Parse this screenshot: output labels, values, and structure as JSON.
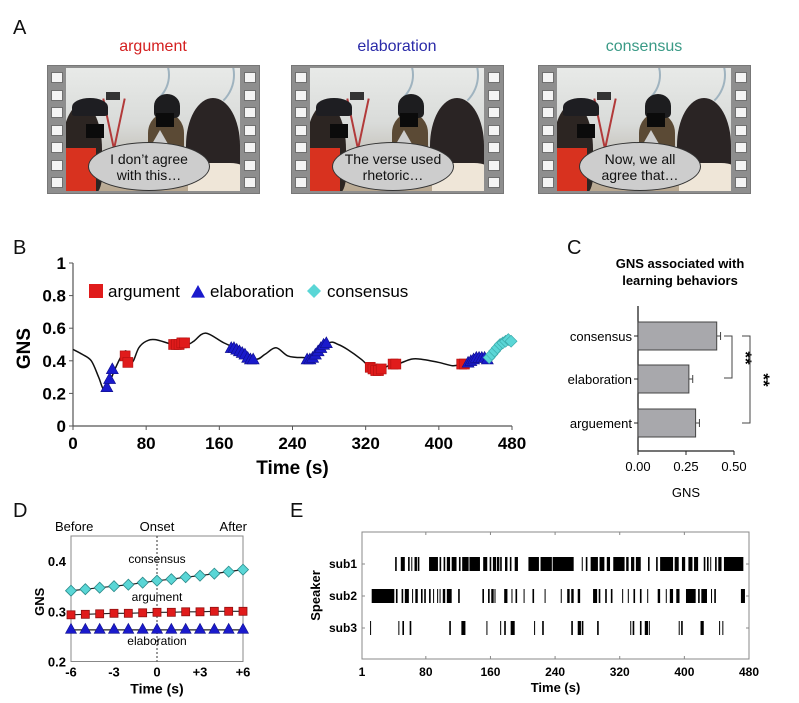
{
  "panels": {
    "A": {
      "letter": "A",
      "frames": [
        {
          "title": "argument",
          "title_color": "#d42020",
          "speech": [
            "I don’t agree",
            "with this…"
          ]
        },
        {
          "title": "elaboration",
          "title_color": "#2a2aa8",
          "speech": [
            "The verse used",
            "rhetoric…"
          ]
        },
        {
          "title": "consensus",
          "title_color": "#3a9a86",
          "speech": [
            "Now, we all",
            "agree that…"
          ]
        }
      ]
    },
    "B": {
      "letter": "B"
    },
    "C": {
      "letter": "C"
    },
    "D": {
      "letter": "D"
    },
    "E": {
      "letter": "E"
    }
  },
  "colors": {
    "argument": "#e01b1b",
    "elaboration": "#1a1acc",
    "consensus": "#5ad6d6",
    "bar_fill": "#a8a8ac",
    "axis": "#555555"
  },
  "chart_data": [
    {
      "id": "B",
      "type": "line",
      "title": "",
      "xlabel": "Time (s)",
      "ylabel": "GNS",
      "xlim": [
        0,
        480
      ],
      "ylim": [
        0,
        1
      ],
      "xticks": [
        0,
        80,
        160,
        240,
        320,
        400,
        480
      ],
      "yticks": [
        0,
        0.2,
        0.4,
        0.6,
        0.8,
        1
      ],
      "ytick_labels": [
        "0",
        "0.2",
        "0.4",
        "0.6",
        "0.8",
        "1"
      ],
      "legend": {
        "placement": "top-left",
        "entries": [
          "argument",
          "elaboration",
          "consensus"
        ]
      },
      "curve": [
        [
          0,
          0.47
        ],
        [
          10,
          0.44
        ],
        [
          20,
          0.4
        ],
        [
          28,
          0.3
        ],
        [
          34,
          0.22
        ],
        [
          40,
          0.27
        ],
        [
          46,
          0.35
        ],
        [
          52,
          0.42
        ],
        [
          57,
          0.46
        ],
        [
          60,
          0.44
        ],
        [
          62,
          0.39
        ],
        [
          66,
          0.4
        ],
        [
          72,
          0.48
        ],
        [
          80,
          0.52
        ],
        [
          90,
          0.53
        ],
        [
          110,
          0.5
        ],
        [
          125,
          0.5
        ],
        [
          132,
          0.52
        ],
        [
          145,
          0.57
        ],
        [
          165,
          0.51
        ],
        [
          185,
          0.46
        ],
        [
          200,
          0.41
        ],
        [
          210,
          0.44
        ],
        [
          222,
          0.48
        ],
        [
          235,
          0.43
        ],
        [
          250,
          0.42
        ],
        [
          262,
          0.43
        ],
        [
          280,
          0.51
        ],
        [
          290,
          0.5
        ],
        [
          300,
          0.47
        ],
        [
          315,
          0.41
        ],
        [
          325,
          0.36
        ],
        [
          335,
          0.34
        ],
        [
          345,
          0.37
        ],
        [
          355,
          0.38
        ],
        [
          370,
          0.41
        ],
        [
          380,
          0.41
        ],
        [
          400,
          0.39
        ],
        [
          415,
          0.37
        ],
        [
          425,
          0.38
        ],
        [
          440,
          0.4
        ],
        [
          450,
          0.41
        ],
        [
          460,
          0.46
        ],
        [
          470,
          0.51
        ],
        [
          480,
          0.53
        ]
      ],
      "markers": {
        "argument": [
          [
            57,
            0.43
          ],
          [
            60,
            0.39
          ],
          [
            110,
            0.5
          ],
          [
            113,
            0.5
          ],
          [
            116,
            0.5
          ],
          [
            119,
            0.51
          ],
          [
            122,
            0.51
          ],
          [
            325,
            0.36
          ],
          [
            328,
            0.35
          ],
          [
            331,
            0.34
          ],
          [
            334,
            0.34
          ],
          [
            337,
            0.35
          ],
          [
            350,
            0.38
          ],
          [
            353,
            0.38
          ],
          [
            425,
            0.38
          ],
          [
            428,
            0.38
          ]
        ],
        "elaboration": [
          [
            37,
            0.24
          ],
          [
            40,
            0.29
          ],
          [
            43,
            0.35
          ],
          [
            173,
            0.48
          ],
          [
            176,
            0.48
          ],
          [
            179,
            0.47
          ],
          [
            182,
            0.46
          ],
          [
            185,
            0.45
          ],
          [
            188,
            0.44
          ],
          [
            191,
            0.42
          ],
          [
            194,
            0.41
          ],
          [
            197,
            0.41
          ],
          [
            256,
            0.41
          ],
          [
            259,
            0.41
          ],
          [
            262,
            0.42
          ],
          [
            265,
            0.44
          ],
          [
            268,
            0.46
          ],
          [
            271,
            0.48
          ],
          [
            274,
            0.5
          ],
          [
            277,
            0.51
          ],
          [
            432,
            0.39
          ],
          [
            435,
            0.4
          ],
          [
            438,
            0.41
          ],
          [
            441,
            0.42
          ],
          [
            444,
            0.42
          ],
          [
            447,
            0.42
          ],
          [
            450,
            0.42
          ],
          [
            453,
            0.41
          ]
        ],
        "consensus": [
          [
            455,
            0.42
          ],
          [
            458,
            0.44
          ],
          [
            461,
            0.46
          ],
          [
            464,
            0.48
          ],
          [
            467,
            0.5
          ],
          [
            470,
            0.51
          ],
          [
            473,
            0.52
          ],
          [
            476,
            0.53
          ],
          [
            479,
            0.52
          ]
        ]
      }
    },
    {
      "id": "C",
      "type": "bar",
      "orientation": "horizontal",
      "title": "GNS associated with learning behaviors",
      "xlabel": "GNS",
      "ylabel": "",
      "xlim": [
        0,
        0.5
      ],
      "xticks": [
        0,
        0.25,
        0.5
      ],
      "xtick_labels": [
        "0.00",
        "0.25",
        "0.50"
      ],
      "categories": [
        "consensus",
        "elaboration",
        "arguement"
      ],
      "values": [
        0.41,
        0.265,
        0.3
      ],
      "errors": [
        0.02,
        0.02,
        0.02
      ],
      "significance": [
        {
          "between": [
            "consensus",
            "elaboration"
          ],
          "label": "**"
        },
        {
          "between": [
            "consensus",
            "arguement"
          ],
          "label": "**"
        }
      ]
    },
    {
      "id": "D",
      "type": "line",
      "xlabel": "Time (s)",
      "ylabel": "GNS",
      "xlim": [
        -6,
        6
      ],
      "ylim": [
        0.2,
        0.45
      ],
      "xticks": [
        -6,
        -3,
        0,
        3,
        6
      ],
      "xtick_labels": [
        "-6",
        "-3",
        "0",
        "+3",
        "+6"
      ],
      "yticks": [
        0.2,
        0.3,
        0.4
      ],
      "ytick_labels": [
        "0.2",
        "0.3",
        "0.4"
      ],
      "top_labels": [
        "Before",
        "Onset",
        "After"
      ],
      "onset_line": 0,
      "x": [
        -6,
        -5,
        -4,
        -3,
        -2,
        -1,
        0,
        1,
        2,
        3,
        4,
        5,
        6
      ],
      "series": [
        {
          "name": "consensus",
          "marker": "diamond",
          "values": [
            0.341,
            0.344,
            0.347,
            0.35,
            0.353,
            0.357,
            0.361,
            0.364,
            0.368,
            0.371,
            0.375,
            0.379,
            0.383
          ]
        },
        {
          "name": "argument",
          "marker": "square",
          "values": [
            0.293,
            0.294,
            0.295,
            0.296,
            0.296,
            0.297,
            0.298,
            0.298,
            0.299,
            0.299,
            0.3,
            0.3,
            0.3
          ]
        },
        {
          "name": "elaboration",
          "marker": "triangle",
          "values": [
            0.263,
            0.263,
            0.263,
            0.263,
            0.263,
            0.263,
            0.263,
            0.263,
            0.263,
            0.263,
            0.263,
            0.263,
            0.263
          ]
        }
      ]
    },
    {
      "id": "E",
      "type": "table",
      "subtype": "raster",
      "xlabel": "Time (s)",
      "ylabel": "Speaker",
      "xlim": [
        1,
        480
      ],
      "xticks": [
        1,
        80,
        160,
        240,
        320,
        400,
        480
      ],
      "speakers": [
        "sub1",
        "sub2",
        "sub3"
      ],
      "segments": {
        "sub1": [
          [
            42,
            44
          ],
          [
            49,
            54
          ],
          [
            58,
            60
          ],
          [
            62,
            63
          ],
          [
            66,
            69
          ],
          [
            70,
            72
          ],
          [
            84,
            95
          ],
          [
            97,
            99
          ],
          [
            102,
            104
          ],
          [
            106,
            110
          ],
          [
            112,
            118
          ],
          [
            121,
            123
          ],
          [
            125,
            133
          ],
          [
            134,
            147
          ],
          [
            151,
            156
          ],
          [
            159,
            161
          ],
          [
            163,
            167
          ],
          [
            168,
            171
          ],
          [
            172,
            174
          ],
          [
            178,
            181
          ],
          [
            184,
            186
          ],
          [
            190,
            194
          ],
          [
            207,
            220
          ],
          [
            222,
            236
          ],
          [
            237,
            263
          ],
          [
            273,
            274
          ],
          [
            278,
            280
          ],
          [
            284,
            293
          ],
          [
            295,
            301
          ],
          [
            304,
            308
          ],
          [
            312,
            326
          ],
          [
            328,
            331
          ],
          [
            334,
            338
          ],
          [
            340,
            346
          ],
          [
            355,
            357
          ],
          [
            365,
            367
          ],
          [
            370,
            386
          ],
          [
            388,
            393
          ],
          [
            397,
            401
          ],
          [
            405,
            410
          ],
          [
            412,
            417
          ],
          [
            424,
            426
          ],
          [
            428,
            430
          ],
          [
            432,
            433
          ],
          [
            438,
            440
          ],
          [
            442,
            446
          ],
          [
            449,
            473
          ]
        ],
        "sub2": [
          [
            13,
            41
          ],
          [
            43,
            45
          ],
          [
            50,
            52
          ],
          [
            54,
            59
          ],
          [
            63,
            64
          ],
          [
            67,
            70
          ],
          [
            74,
            76
          ],
          [
            78,
            80
          ],
          [
            84,
            86
          ],
          [
            89,
            90
          ],
          [
            94,
            95
          ],
          [
            97,
            98
          ],
          [
            101,
            104
          ],
          [
            106,
            112
          ],
          [
            120,
            122
          ],
          [
            150,
            152
          ],
          [
            157,
            159
          ],
          [
            161,
            164
          ],
          [
            165,
            166
          ],
          [
            177,
            181
          ],
          [
            186,
            187
          ],
          [
            191,
            193
          ],
          [
            201,
            202
          ],
          [
            212,
            214
          ],
          [
            227,
            228
          ],
          [
            247,
            248
          ],
          [
            255,
            258
          ],
          [
            260,
            263
          ],
          [
            268,
            271
          ],
          [
            287,
            292
          ],
          [
            294,
            296
          ],
          [
            302,
            304
          ],
          [
            309,
            311
          ],
          [
            323,
            324
          ],
          [
            330,
            331
          ],
          [
            337,
            339
          ],
          [
            345,
            347
          ],
          [
            354,
            355
          ],
          [
            367,
            370
          ],
          [
            377,
            378
          ],
          [
            382,
            386
          ],
          [
            390,
            394
          ],
          [
            402,
            414
          ],
          [
            417,
            419
          ],
          [
            421,
            428
          ],
          [
            433,
            434
          ],
          [
            437,
            439
          ],
          [
            470,
            475
          ]
        ],
        "sub3": [
          [
            11,
            12
          ],
          [
            46,
            47
          ],
          [
            51,
            53
          ],
          [
            60,
            62
          ],
          [
            109,
            111
          ],
          [
            124,
            129
          ],
          [
            155,
            156
          ],
          [
            172,
            173
          ],
          [
            177,
            179
          ],
          [
            185,
            190
          ],
          [
            214,
            215
          ],
          [
            224,
            226
          ],
          [
            260,
            262
          ],
          [
            268,
            272
          ],
          [
            273,
            275
          ],
          [
            292,
            294
          ],
          [
            333,
            334
          ],
          [
            336,
            338
          ],
          [
            345,
            347
          ],
          [
            351,
            355
          ],
          [
            356,
            357
          ],
          [
            393,
            394
          ],
          [
            396,
            398
          ],
          [
            420,
            424
          ],
          [
            443,
            444
          ],
          [
            447,
            448
          ]
        ]
      }
    }
  ]
}
